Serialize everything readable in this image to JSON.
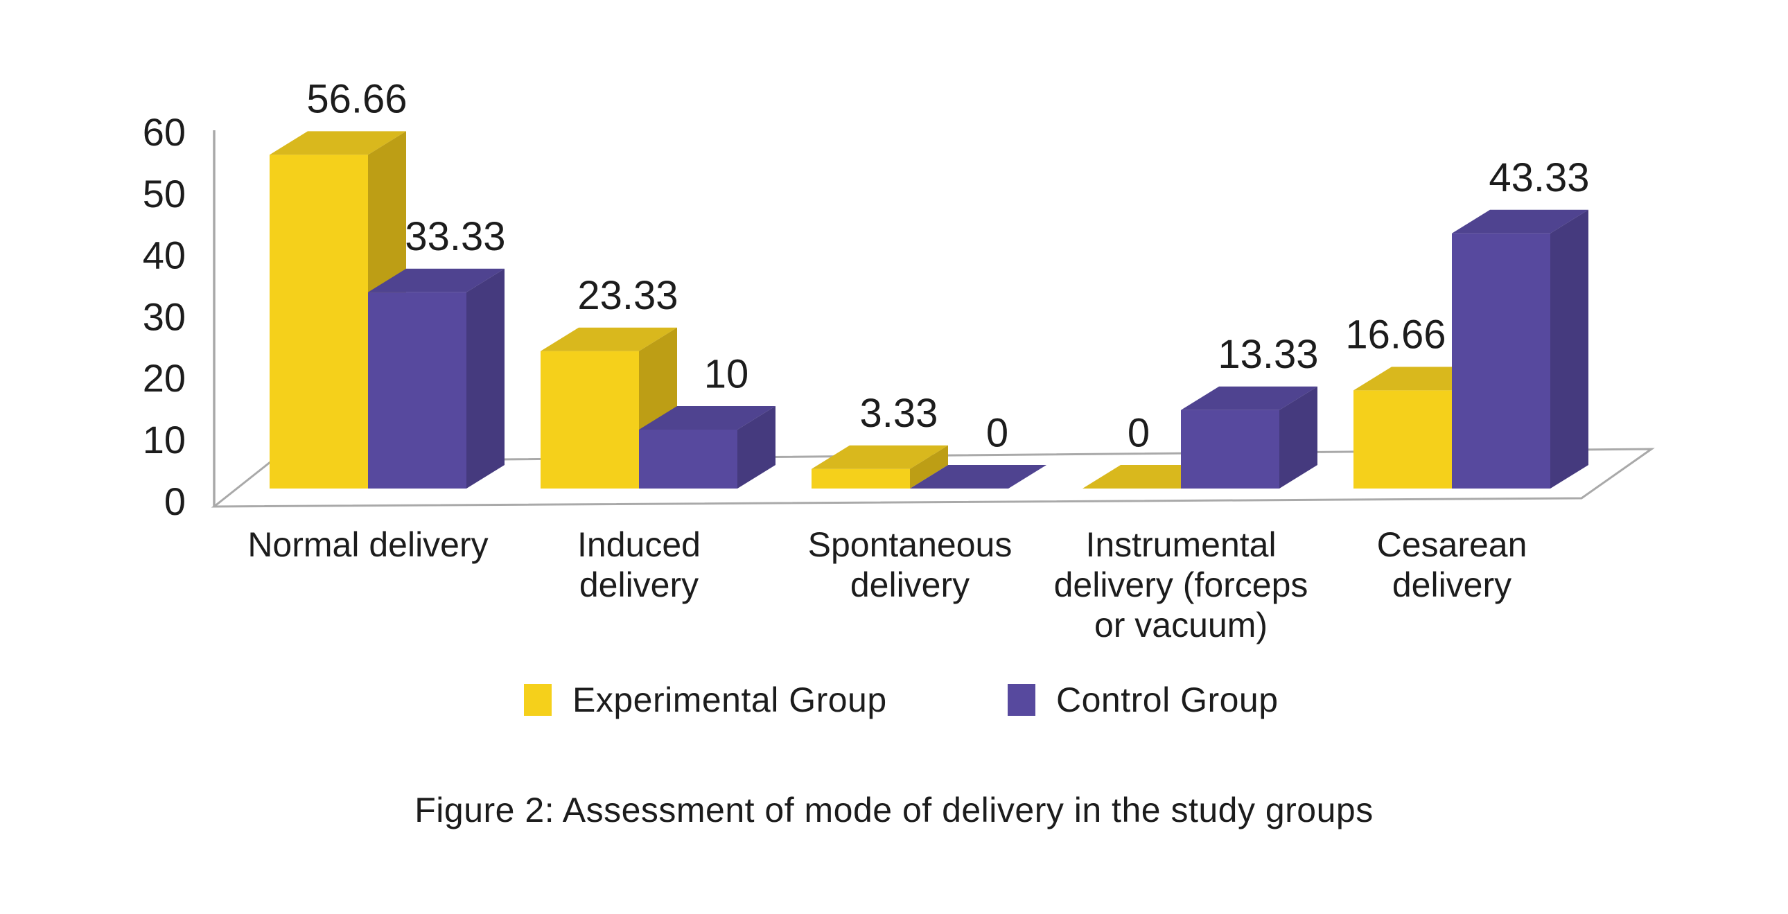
{
  "chart_data": {
    "type": "bar",
    "style": "3d-clustered-column",
    "caption": "Figure 2: Assessment of mode of delivery in the study groups",
    "categories": [
      "Normal delivery",
      "Induced delivery",
      "Spontaneous delivery",
      "Instrumental delivery (forceps or vacuum)",
      "Cesarean delivery"
    ],
    "category_label_lines": [
      [
        "Normal delivery"
      ],
      [
        "Induced",
        "delivery"
      ],
      [
        "Spontaneous",
        "delivery"
      ],
      [
        "Instrumental",
        "delivery (forceps",
        "or vacuum)"
      ],
      [
        "Cesarean",
        "delivery"
      ]
    ],
    "series": [
      {
        "name": "Experimental Group",
        "color": "#F5D01B",
        "color_top": "#D9B81D",
        "color_side": "#BD9E15",
        "values": [
          56.66,
          23.33,
          3.33,
          0,
          16.66
        ],
        "value_labels": [
          "56.66",
          "23.33",
          "3.33",
          "0",
          "16.66"
        ]
      },
      {
        "name": "Control Group",
        "color": "#57499E",
        "color_top": "#4F4390",
        "color_side": "#453A7E",
        "values": [
          33.33,
          10,
          0,
          13.33,
          43.33
        ],
        "value_labels": [
          "33.33",
          "10",
          "0",
          "13.33",
          "43.33"
        ]
      }
    ],
    "y_axis": {
      "min": 0,
      "max": 60,
      "tick_labels": [
        "0",
        "10",
        "20",
        "30",
        "40",
        "50",
        "60"
      ]
    },
    "legend_position": "bottom",
    "grid": false,
    "axis_color": "#A9A9A9",
    "text_color": "#1C1C1C"
  }
}
